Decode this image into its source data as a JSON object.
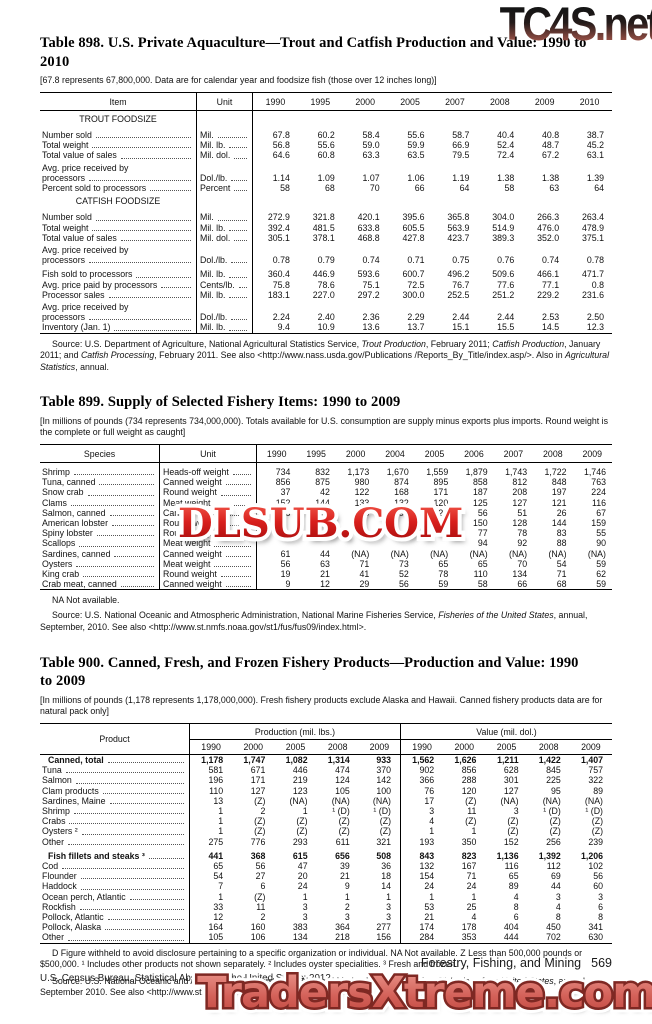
{
  "watermarks": {
    "top": "TC4S.net",
    "middle": "DLSUB.COM",
    "bottom": "TradersXtreme.com"
  },
  "table898": {
    "title": "Table 898. U.S. Private Aquaculture—Trout and Catfish Production and Value: 1990 to 2010",
    "note": "[67.8 represents 67,800,000. Data are for calendar year and foodsize fish (those over 12 inches long)]",
    "col_item": "Item",
    "col_unit": "Unit",
    "years": [
      "1990",
      "1995",
      "2000",
      "2005",
      "2007",
      "2008",
      "2009",
      "2010"
    ],
    "rows": [
      {
        "section": "TROUT FOODSIZE"
      },
      {
        "label": "Number sold",
        "unit": "Mil.",
        "gap": true,
        "values": [
          "67.8",
          "60.2",
          "58.4",
          "55.6",
          "58.7",
          "40.4",
          "40.8",
          "38.7"
        ]
      },
      {
        "label": "Total weight",
        "unit": "Mil. lb.",
        "values": [
          "56.8",
          "55.6",
          "59.0",
          "59.9",
          "66.9",
          "52.4",
          "48.7",
          "45.2"
        ]
      },
      {
        "label": "Total value of sales",
        "unit": "Mil. dol.",
        "values": [
          "64.6",
          "60.8",
          "63.3",
          "63.5",
          "79.5",
          "72.4",
          "67.2",
          "63.1"
        ]
      },
      {
        "label": "Avg. price received by",
        "noleader": true
      },
      {
        "label": "  processors",
        "unit": "Dol./lb.",
        "values": [
          "1.14",
          "1.09",
          "1.07",
          "1.06",
          "1.19",
          "1.38",
          "1.38",
          "1.39"
        ]
      },
      {
        "label": "Percent sold to processors",
        "unit": "Percent",
        "values": [
          "58",
          "68",
          "70",
          "66",
          "64",
          "58",
          "63",
          "64"
        ]
      },
      {
        "section": "CATFISH FOODSIZE"
      },
      {
        "label": "Number sold",
        "unit": "Mil.",
        "gap": true,
        "values": [
          "272.9",
          "321.8",
          "420.1",
          "395.6",
          "365.8",
          "304.0",
          "266.3",
          "263.4"
        ]
      },
      {
        "label": "Total weight",
        "unit": "Mil. lb.",
        "values": [
          "392.4",
          "481.5",
          "633.8",
          "605.5",
          "563.9",
          "514.9",
          "476.0",
          "478.9"
        ]
      },
      {
        "label": "Total value of sales",
        "unit": "Mil. dol.",
        "values": [
          "305.1",
          "378.1",
          "468.8",
          "427.8",
          "423.7",
          "389.3",
          "352.0",
          "375.1"
        ]
      },
      {
        "label": "Avg. price received by",
        "noleader": true
      },
      {
        "label": "  processors",
        "unit": "Dol./lb.",
        "values": [
          "0.78",
          "0.79",
          "0.74",
          "0.71",
          "0.75",
          "0.76",
          "0.74",
          "0.78"
        ]
      },
      {
        "label": "Fish sold to processors",
        "unit": "Mil. lb.",
        "gap": true,
        "values": [
          "360.4",
          "446.9",
          "593.6",
          "600.7",
          "496.2",
          "509.6",
          "466.1",
          "471.7"
        ]
      },
      {
        "label": "Avg. price paid by processors",
        "unit": "Cents/lb.",
        "values": [
          "75.8",
          "78.6",
          "75.1",
          "72.5",
          "76.7",
          "77.6",
          "77.1",
          "0.8"
        ]
      },
      {
        "label": "Processor sales",
        "unit": "Mil. lb.",
        "values": [
          "183.1",
          "227.0",
          "297.2",
          "300.0",
          "252.5",
          "251.2",
          "229.2",
          "231.6"
        ]
      },
      {
        "label": "Avg. price received by",
        "noleader": true
      },
      {
        "label": "  processors",
        "unit": "Dol./lb.",
        "values": [
          "2.24",
          "2.40",
          "2.36",
          "2.29",
          "2.44",
          "2.44",
          "2.53",
          "2.50"
        ]
      },
      {
        "label": "Inventory (Jan. 1)",
        "unit": "Mil. lb.",
        "values": [
          "9.4",
          "10.9",
          "13.6",
          "13.7",
          "15.1",
          "15.5",
          "14.5",
          "12.3"
        ]
      }
    ],
    "source": [
      {
        "t": "Source: U.S. Department of Agriculture, National Agricultural Statistics Service, ",
        "i": false
      },
      {
        "t": "Trout Production",
        "i": true
      },
      {
        "t": ", February 2011; ",
        "i": false
      },
      {
        "t": "Catfish Production",
        "i": true
      },
      {
        "t": ", January 2011; and ",
        "i": false
      },
      {
        "t": "Catfish Processing",
        "i": true
      },
      {
        "t": ", February 2011. See also <http://www.nass.usda.gov/Publications /Reports_By_Title/index.asp/>. Also in ",
        "i": false
      },
      {
        "t": "Agricultural Statistics",
        "i": true
      },
      {
        "t": ", annual.",
        "i": false
      }
    ]
  },
  "table899": {
    "title": "Table 899. Supply of Selected Fishery Items: 1990 to 2009",
    "note": "[In millions of pounds (734 represents 734,000,000). Totals available for U.S. consumption are supply minus exports plus imports. Round weight is the complete or full weight as caught]",
    "col_item": "Species",
    "col_unit": "Unit",
    "years": [
      "1990",
      "1995",
      "2000",
      "2004",
      "2005",
      "2006",
      "2007",
      "2008",
      "2009"
    ],
    "rows": [
      {
        "label": "Shrimp",
        "unit": "Heads-off weight",
        "gap": true,
        "values": [
          "734",
          "832",
          "1,173",
          "1,670",
          "1,559",
          "1,879",
          "1,743",
          "1,722",
          "1,746"
        ]
      },
      {
        "label": "Tuna, canned",
        "unit": "Canned weight",
        "values": [
          "856",
          "875",
          "980",
          "874",
          "895",
          "858",
          "812",
          "848",
          "763"
        ]
      },
      {
        "label": "Snow crab",
        "unit": "Round weight",
        "values": [
          "37",
          "42",
          "122",
          "168",
          "171",
          "187",
          "208",
          "197",
          "224"
        ]
      },
      {
        "label": "Clams",
        "unit": "Meat weight",
        "values": [
          "152",
          "144",
          "133",
          "132",
          "120",
          "125",
          "127",
          "121",
          "116"
        ]
      },
      {
        "label": "Salmon, canned",
        "unit": "Canned weight",
        "values": [
          "148",
          "147",
          "95",
          "98",
          "123",
          "56",
          "51",
          "26",
          "67"
        ]
      },
      {
        "label": "American lobster",
        "unit": "Round weight",
        "values": [
          "",
          "",
          "",
          "",
          "",
          "150",
          "128",
          "144",
          "159"
        ]
      },
      {
        "label": "Spiny lobster",
        "unit": "Round weight",
        "values": [
          "",
          "",
          "",
          "",
          "",
          "77",
          "78",
          "83",
          "55"
        ]
      },
      {
        "label": "Scallops",
        "unit": "Meat weight",
        "values": [
          "",
          "",
          "",
          "",
          "",
          "94",
          "92",
          "88",
          "90"
        ]
      },
      {
        "label": "Sardines, canned",
        "unit": "Canned weight",
        "values": [
          "61",
          "44",
          "(NA)",
          "(NA)",
          "(NA)",
          "(NA)",
          "(NA)",
          "(NA)",
          "(NA)"
        ]
      },
      {
        "label": "Oysters",
        "unit": "Meat weight",
        "values": [
          "56",
          "63",
          "71",
          "73",
          "65",
          "65",
          "70",
          "54",
          "59"
        ]
      },
      {
        "label": "King crab",
        "unit": "Round weight",
        "values": [
          "19",
          "21",
          "41",
          "52",
          "78",
          "110",
          "134",
          "71",
          "62"
        ]
      },
      {
        "label": "Crab meat, canned",
        "unit": "Canned weight",
        "values": [
          "9",
          "12",
          "29",
          "56",
          "59",
          "58",
          "66",
          "68",
          "59"
        ]
      }
    ],
    "na_note": "NA Not available.",
    "source": [
      {
        "t": "Source: U.S. National Oceanic and Atmospheric Administration, National Marine Fisheries Service, ",
        "i": false
      },
      {
        "t": "Fisheries of the United States",
        "i": true
      },
      {
        "t": ", annual, September, 2010. See also <http://www.st.nmfs.noaa.gov/st1/fus/fus09/index.html>.",
        "i": false
      }
    ]
  },
  "table900": {
    "title": "Table 900. Canned, Fresh, and Frozen Fishery Products—Production and Value: 1990 to 2009",
    "note": "[In millions of pounds (1,178 represents 1,178,000,000). Fresh fishery products exclude Alaska and Hawaii. Canned fishery products data are for natural pack only]",
    "col_product": "Product",
    "group_production": "Production (mil. lbs.)",
    "group_value": "Value (mil. dol.)",
    "years": [
      "1990",
      "2000",
      "2005",
      "2008",
      "2009"
    ],
    "rows": [
      {
        "label": "Canned, total",
        "bold": true,
        "production": [
          "1,178",
          "1,747",
          "1,082",
          "1,314",
          "933"
        ],
        "value": [
          "1,562",
          "1,626",
          "1,211",
          "1,422",
          "1,407"
        ]
      },
      {
        "label": "Tuna",
        "production": [
          "581",
          "671",
          "446",
          "474",
          "370"
        ],
        "value": [
          "902",
          "856",
          "628",
          "845",
          "757"
        ]
      },
      {
        "label": "Salmon",
        "production": [
          "196",
          "171",
          "219",
          "124",
          "142"
        ],
        "value": [
          "366",
          "288",
          "301",
          "225",
          "322"
        ]
      },
      {
        "label": "Clam products",
        "production": [
          "110",
          "127",
          "123",
          "105",
          "100"
        ],
        "value": [
          "76",
          "120",
          "127",
          "95",
          "89"
        ]
      },
      {
        "label": "Sardines, Maine",
        "production": [
          "13",
          "(Z)",
          "(NA)",
          "(NA)",
          "(NA)"
        ],
        "value": [
          "17",
          "(Z)",
          "(NA)",
          "(NA)",
          "(NA)"
        ]
      },
      {
        "label": "Shrimp",
        "production": [
          "1",
          "2",
          "1",
          "¹ (D)",
          "¹ (D)"
        ],
        "value": [
          "3",
          "11",
          "3",
          "¹ (D)",
          "¹ (D)"
        ]
      },
      {
        "label": "Crabs",
        "production": [
          "1",
          "(Z)",
          "(Z)",
          "(Z)",
          "(Z)"
        ],
        "value": [
          "4",
          "(Z)",
          "(Z)",
          "(Z)",
          "(Z)"
        ]
      },
      {
        "label": "Oysters ²",
        "production": [
          "1",
          "(Z)",
          "(Z)",
          "(Z)",
          "(Z)"
        ],
        "value": [
          "1",
          "1",
          "(Z)",
          "(Z)",
          "(Z)"
        ]
      },
      {
        "label": "Other",
        "production": [
          "275",
          "776",
          "293",
          "611",
          "321"
        ],
        "value": [
          "193",
          "350",
          "152",
          "256",
          "239"
        ]
      },
      {
        "label": "Fish fillets and steaks ³",
        "bold": true,
        "gap": true,
        "production": [
          "441",
          "368",
          "615",
          "656",
          "508"
        ],
        "value": [
          "843",
          "823",
          "1,136",
          "1,392",
          "1,206"
        ]
      },
      {
        "label": "Cod",
        "production": [
          "65",
          "56",
          "47",
          "39",
          "36"
        ],
        "value": [
          "132",
          "167",
          "116",
          "112",
          "102"
        ]
      },
      {
        "label": "Flounder",
        "production": [
          "54",
          "27",
          "20",
          "21",
          "18"
        ],
        "value": [
          "154",
          "71",
          "65",
          "69",
          "56"
        ]
      },
      {
        "label": "Haddock",
        "production": [
          "7",
          "6",
          "24",
          "9",
          "14"
        ],
        "value": [
          "24",
          "24",
          "89",
          "44",
          "60"
        ]
      },
      {
        "label": "Ocean perch, Atlantic",
        "production": [
          "1",
          "(Z)",
          "1",
          "1",
          "1"
        ],
        "value": [
          "1",
          "1",
          "4",
          "3",
          "3"
        ]
      },
      {
        "label": "Rockfish",
        "production": [
          "33",
          "11",
          "3",
          "2",
          "3"
        ],
        "value": [
          "53",
          "25",
          "8",
          "4",
          "6"
        ]
      },
      {
        "label": "Pollock, Atlantic",
        "production": [
          "12",
          "2",
          "3",
          "3",
          "3"
        ],
        "value": [
          "21",
          "4",
          "6",
          "8",
          "8"
        ]
      },
      {
        "label": "Pollock, Alaska",
        "production": [
          "164",
          "160",
          "383",
          "364",
          "277"
        ],
        "value": [
          "174",
          "178",
          "404",
          "450",
          "341"
        ]
      },
      {
        "label": "Other",
        "production": [
          "105",
          "106",
          "134",
          "218",
          "156"
        ],
        "value": [
          "284",
          "353",
          "444",
          "702",
          "630"
        ]
      }
    ],
    "footnote": "D Figure withheld to avoid disclosure pertaining to a specific organization or individual. NA Not available. Z Less than 500,000 pounds or $500,000. ¹ Includes other products not shown separately. ² Includes oyster specialities. ³ Fresh and frozen.",
    "source": [
      {
        "t": "Source: U.S. National Oceanic and Atmospheric Administration, National Marine Fisheries Service, ",
        "i": false
      },
      {
        "t": "Fisheries of the United States",
        "i": true
      },
      {
        "t": ", annual, September 2010. See also <http://www.st.nmfs.noaa.gov/st1/fus/fus09/index.html>.",
        "i": false
      }
    ]
  },
  "footer": {
    "section": "Forestry, Fishing, and Mining",
    "page": "569",
    "census": "U.S. Census Bureau, Statistical Abstract of the United States: 2012"
  }
}
